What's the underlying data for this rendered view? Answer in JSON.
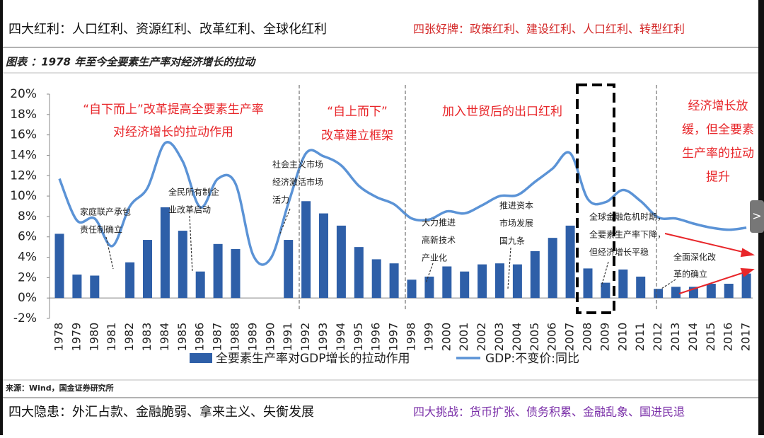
{
  "header": {
    "left": "四大红利：人口红利、资源红利、改革红利、全球化红利",
    "right": "四张好牌：政策红利、建设红利、人口红利、转型红利"
  },
  "chart_caption": "图表 ：1978 年至今全要素生产率对经济增长的拉动",
  "chart_data": {
    "type": "combo",
    "categories": [
      "1978",
      "1979",
      "1980",
      "1981",
      "1982",
      "1983",
      "1984",
      "1985",
      "1986",
      "1987",
      "1988",
      "1989",
      "1990",
      "1991",
      "1992",
      "1993",
      "1994",
      "1995",
      "1996",
      "1997",
      "1998",
      "1999",
      "2000",
      "2001",
      "2002",
      "2003",
      "2004",
      "2005",
      "2006",
      "2007",
      "2008",
      "2009",
      "2010",
      "2011",
      "2012",
      "2013",
      "2014",
      "2015",
      "2016",
      "2017"
    ],
    "series": [
      {
        "name": "全要素生产率对GDP增长的拉动作用",
        "type": "bar",
        "color": "#2e5fa8",
        "values": [
          6.3,
          2.3,
          2.2,
          null,
          3.5,
          5.7,
          8.9,
          6.6,
          2.6,
          5.3,
          4.8,
          null,
          null,
          5.7,
          9.5,
          8.3,
          7.1,
          5.0,
          3.8,
          3.4,
          1.8,
          2.1,
          3.1,
          2.6,
          3.3,
          3.4,
          3.3,
          4.6,
          5.9,
          7.1,
          2.9,
          1.5,
          2.8,
          2.1,
          0.9,
          1.1,
          1.1,
          1.4,
          1.4,
          2.4
        ]
      },
      {
        "name": "GDP:不变价:同比",
        "type": "line",
        "color": "#5b93d6",
        "values": [
          11.7,
          7.6,
          7.8,
          5.1,
          9.0,
          10.8,
          15.2,
          13.4,
          8.9,
          11.7,
          11.2,
          4.2,
          3.9,
          9.3,
          14.2,
          13.9,
          13.0,
          11.0,
          9.9,
          9.2,
          7.8,
          7.7,
          8.5,
          8.3,
          9.1,
          10.0,
          10.1,
          11.4,
          12.7,
          14.2,
          9.7,
          9.4,
          10.6,
          9.5,
          7.9,
          7.8,
          7.3,
          6.9,
          6.7,
          6.9
        ]
      }
    ],
    "ylim": [
      -2,
      20
    ],
    "yticks": [
      {
        "value": -2,
        "label": "-2%"
      },
      {
        "value": 0,
        "label": "0%"
      },
      {
        "value": 2,
        "label": "2%"
      },
      {
        "value": 4,
        "label": "4%"
      },
      {
        "value": 6,
        "label": "6%"
      },
      {
        "value": 8,
        "label": "8%"
      },
      {
        "value": 10,
        "label": "10%"
      },
      {
        "value": 12,
        "label": "12%"
      },
      {
        "value": 14,
        "label": "14%"
      },
      {
        "value": 16,
        "label": "16%"
      },
      {
        "value": 18,
        "label": "18%"
      },
      {
        "value": 20,
        "label": "20%"
      }
    ],
    "annotations": [
      {
        "style": "red",
        "lines": [
          "“自下而上”改革提高全要素生产率",
          "对经济增长的拉动作用"
        ]
      },
      {
        "style": "red",
        "lines": [
          "“自上而下”",
          "改革建立框架"
        ]
      },
      {
        "style": "red",
        "lines": [
          "加入世贸后的出口红利"
        ]
      },
      {
        "style": "red",
        "lines": [
          "经济增长放",
          "缓，但全要素",
          "生产率的拉动",
          "提升"
        ]
      },
      {
        "style": "note",
        "lines": [
          "家庭联产承包",
          "责任制确立"
        ]
      },
      {
        "style": "note",
        "lines": [
          "全民所有制企",
          "业改革启动"
        ]
      },
      {
        "style": "note",
        "lines": [
          "社会主义市场",
          "经济激活市场",
          "活力"
        ]
      },
      {
        "style": "note",
        "lines": [
          "大力推进",
          "高新技术",
          "产业化"
        ]
      },
      {
        "style": "note",
        "lines": [
          "推进资本",
          "市场发展",
          "国九条"
        ]
      },
      {
        "style": "note",
        "lines": [
          "全球金融危机时期，",
          "全要素生产率下降，",
          "但经济增长平稳"
        ]
      },
      {
        "style": "note",
        "lines": [
          "全面深化改",
          "革的确立"
        ]
      }
    ]
  },
  "source": "来源：Wind，国金证券研究所",
  "footer": {
    "left": "四大隐患：外汇占款、金融脆弱、拿来主义、失衡发展",
    "right": "四大挑战：货币扩张、债务积累、金融乱象、国进民退"
  }
}
